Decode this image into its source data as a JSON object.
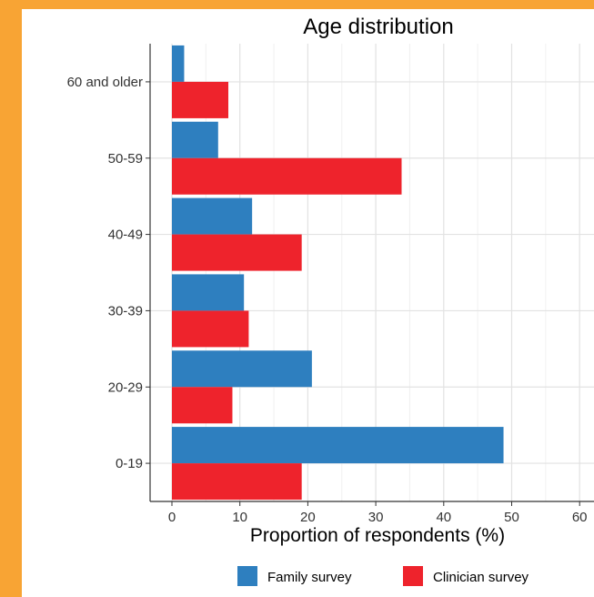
{
  "colors": {
    "frame": "#f8a434",
    "family": "#2e7fbf",
    "clinician": "#ee232c"
  },
  "chart_data": {
    "type": "bar",
    "orientation": "horizontal",
    "title": "Age distribution",
    "xlabel": "Proportion of respondents (%)",
    "ylabel": "",
    "categories": [
      "0-19",
      "20-29",
      "30-39",
      "40-49",
      "50-59",
      "60 and older"
    ],
    "series": [
      {
        "name": "Family survey",
        "color": "#2e7fbf",
        "values": [
          48.8,
          20.6,
          10.6,
          11.8,
          6.8,
          1.8
        ]
      },
      {
        "name": "Clinician survey",
        "color": "#ee232c",
        "values": [
          19.1,
          8.9,
          11.3,
          19.1,
          33.8,
          8.3
        ]
      }
    ],
    "xlim": [
      -3,
      62
    ],
    "xticks": [
      0,
      10,
      20,
      30,
      40,
      50,
      60
    ],
    "grid": true,
    "legend": "bottom"
  }
}
